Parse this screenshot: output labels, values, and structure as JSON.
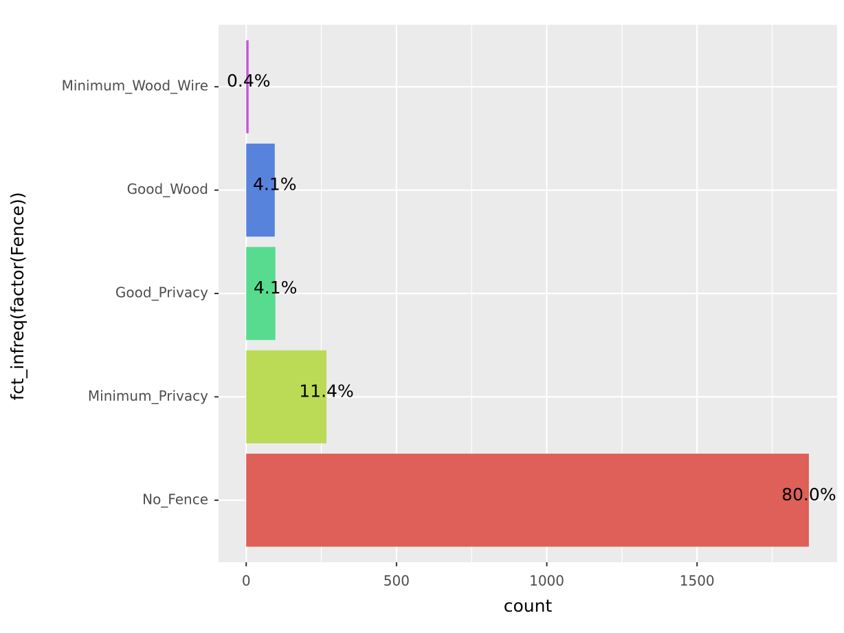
{
  "chart_data": {
    "type": "bar",
    "orientation": "horizontal",
    "xlabel": "count",
    "ylabel": "fct_infreq(factor(Fence))",
    "categories": [
      "No_Fence",
      "Minimum_Privacy",
      "Good_Privacy",
      "Good_Wood",
      "Minimum_Wood_Wire"
    ],
    "values": [
      1872,
      267,
      97,
      95,
      8
    ],
    "labels": [
      "80.0%",
      "11.4%",
      "4.1%",
      "4.1%",
      "0.4%"
    ],
    "colors": [
      "#de6058",
      "#bbdb57",
      "#57db8f",
      "#5783dd",
      "#c757d9"
    ],
    "xlim": [
      -92,
      1966
    ],
    "xticks": [
      0,
      500,
      1000,
      1500
    ],
    "xtick_labels": [
      "0",
      "500",
      "1000",
      "1500"
    ],
    "grid": true,
    "panel_background": "#ebebeb",
    "grid_color": "#ffffff"
  }
}
